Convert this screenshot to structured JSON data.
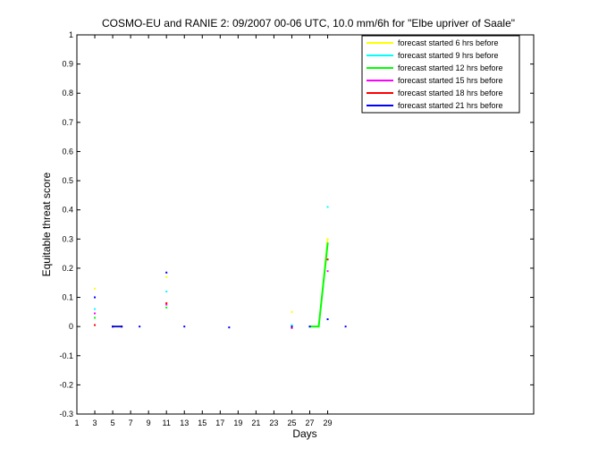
{
  "chart_data": {
    "type": "line",
    "title": "COSMO-EU and RANIE 2: 09/2007 00-06 UTC, 10.0 mm/6h for \"Elbe upriver of Saale\"",
    "xlabel": "Days",
    "ylabel": "Equitable threat score",
    "xlim": [
      1,
      52
    ],
    "ylim": [
      -0.3,
      1
    ],
    "xticks": [
      1,
      3,
      5,
      7,
      9,
      11,
      13,
      15,
      17,
      19,
      21,
      23,
      25,
      27,
      29
    ],
    "yticks": [
      -0.3,
      -0.2,
      -0.1,
      0,
      0.1,
      0.2,
      0.3,
      0.4,
      0.5,
      0.6,
      0.7,
      0.8,
      0.9,
      1
    ],
    "legend_position": "top-right",
    "series": [
      {
        "name": "forecast started 6 hrs before",
        "color": "#ffff00",
        "points": [
          [
            3,
            0.13
          ],
          [
            5,
            0
          ],
          [
            6,
            0
          ],
          [
            11,
            0.17
          ],
          [
            25,
            0.05
          ],
          [
            28,
            0
          ],
          [
            29,
            0.3
          ]
        ]
      },
      {
        "name": "forecast started 9 hrs before",
        "color": "#00ffff",
        "points": [
          [
            3,
            0.06
          ],
          [
            5,
            0
          ],
          [
            6,
            0
          ],
          [
            11,
            0.12
          ],
          [
            25,
            0.005
          ],
          [
            29,
            0.41
          ]
        ]
      },
      {
        "name": "forecast started 12 hrs before",
        "color": "#00ff00",
        "points": [
          [
            3,
            0.03
          ],
          [
            5,
            0
          ],
          [
            6,
            0
          ],
          [
            11,
            0.065
          ],
          [
            27,
            0
          ],
          [
            28,
            0
          ],
          [
            29,
            0.285
          ]
        ]
      },
      {
        "name": "forecast started 15 hrs before",
        "color": "#ff00ff",
        "points": [
          [
            3,
            0.045
          ],
          [
            5,
            0
          ],
          [
            6,
            0
          ],
          [
            11,
            0.075
          ],
          [
            25,
            -0.005
          ],
          [
            29,
            0.19
          ]
        ]
      },
      {
        "name": "forecast started 18 hrs before",
        "color": "#ff0000",
        "points": [
          [
            3,
            0.005
          ],
          [
            5,
            0
          ],
          [
            6,
            0
          ],
          [
            11,
            0.08
          ],
          [
            25,
            -0.003
          ],
          [
            29,
            0.23
          ]
        ]
      },
      {
        "name": "forecast started 21 hrs before",
        "color": "#0000ff",
        "points": [
          [
            3,
            0.1
          ],
          [
            5,
            0
          ],
          [
            6,
            0
          ],
          [
            8,
            0
          ],
          [
            11,
            0.185
          ],
          [
            13,
            0
          ],
          [
            18,
            -0.003
          ],
          [
            25,
            0
          ],
          [
            27,
            0
          ],
          [
            29,
            0.025
          ],
          [
            31,
            0
          ]
        ]
      }
    ]
  }
}
